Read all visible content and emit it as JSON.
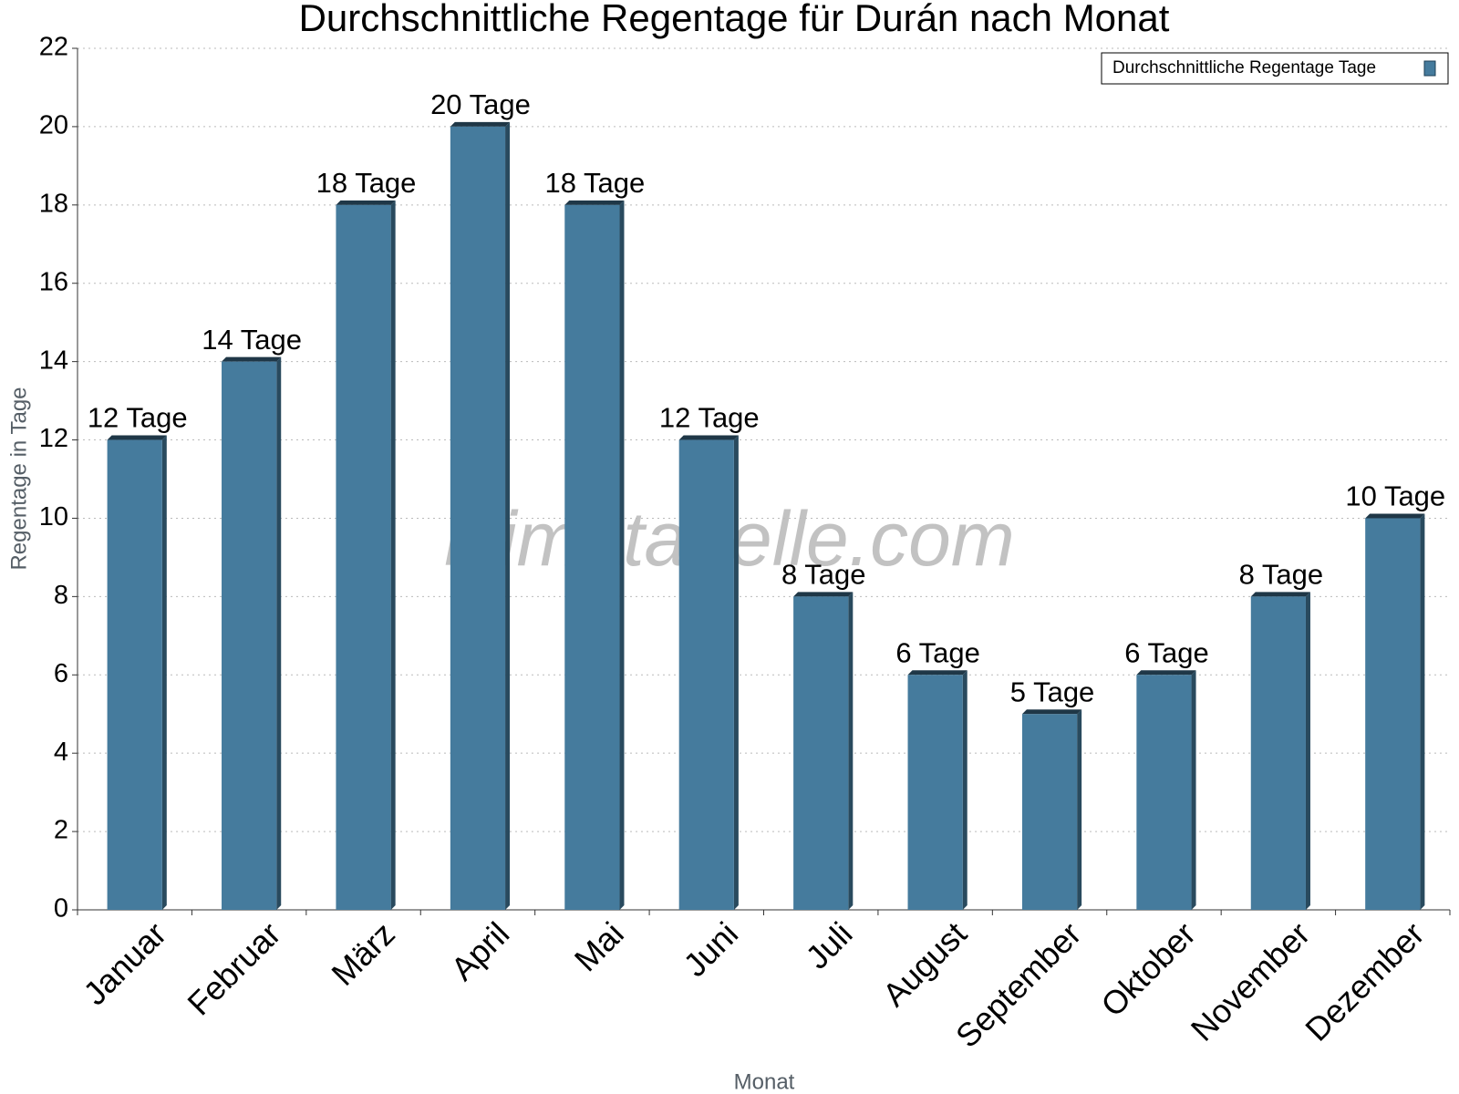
{
  "chart_data": {
    "type": "bar",
    "title": "Durchschnittliche Regentage für Durán nach Monat",
    "x_label": "Monat",
    "y_label": "Regentage in Tage",
    "watermark": "klimatabelle.com",
    "categories": [
      "Januar",
      "Februar",
      "März",
      "April",
      "Mai",
      "Juni",
      "Juli",
      "August",
      "September",
      "Oktober",
      "November",
      "Dezember"
    ],
    "series": [
      {
        "name": "Durchschnittliche Regentage Tage",
        "color": "#457b9d",
        "values": [
          12,
          14,
          18,
          20,
          18,
          12,
          8,
          6,
          5,
          6,
          8,
          10
        ],
        "value_labels": [
          "12 Tage",
          "14 Tage",
          "18 Tage",
          "20 Tage",
          "18 Tage",
          "12 Tage",
          "8 Tage",
          "6 Tage",
          "5 Tage",
          "6 Tage",
          "8 Tage",
          "10 Tage"
        ]
      }
    ],
    "ylim": [
      0,
      22
    ],
    "yticks": [
      0,
      2,
      4,
      6,
      8,
      10,
      12,
      14,
      16,
      18,
      20,
      22
    ],
    "grid": true,
    "legend": "top-right"
  }
}
